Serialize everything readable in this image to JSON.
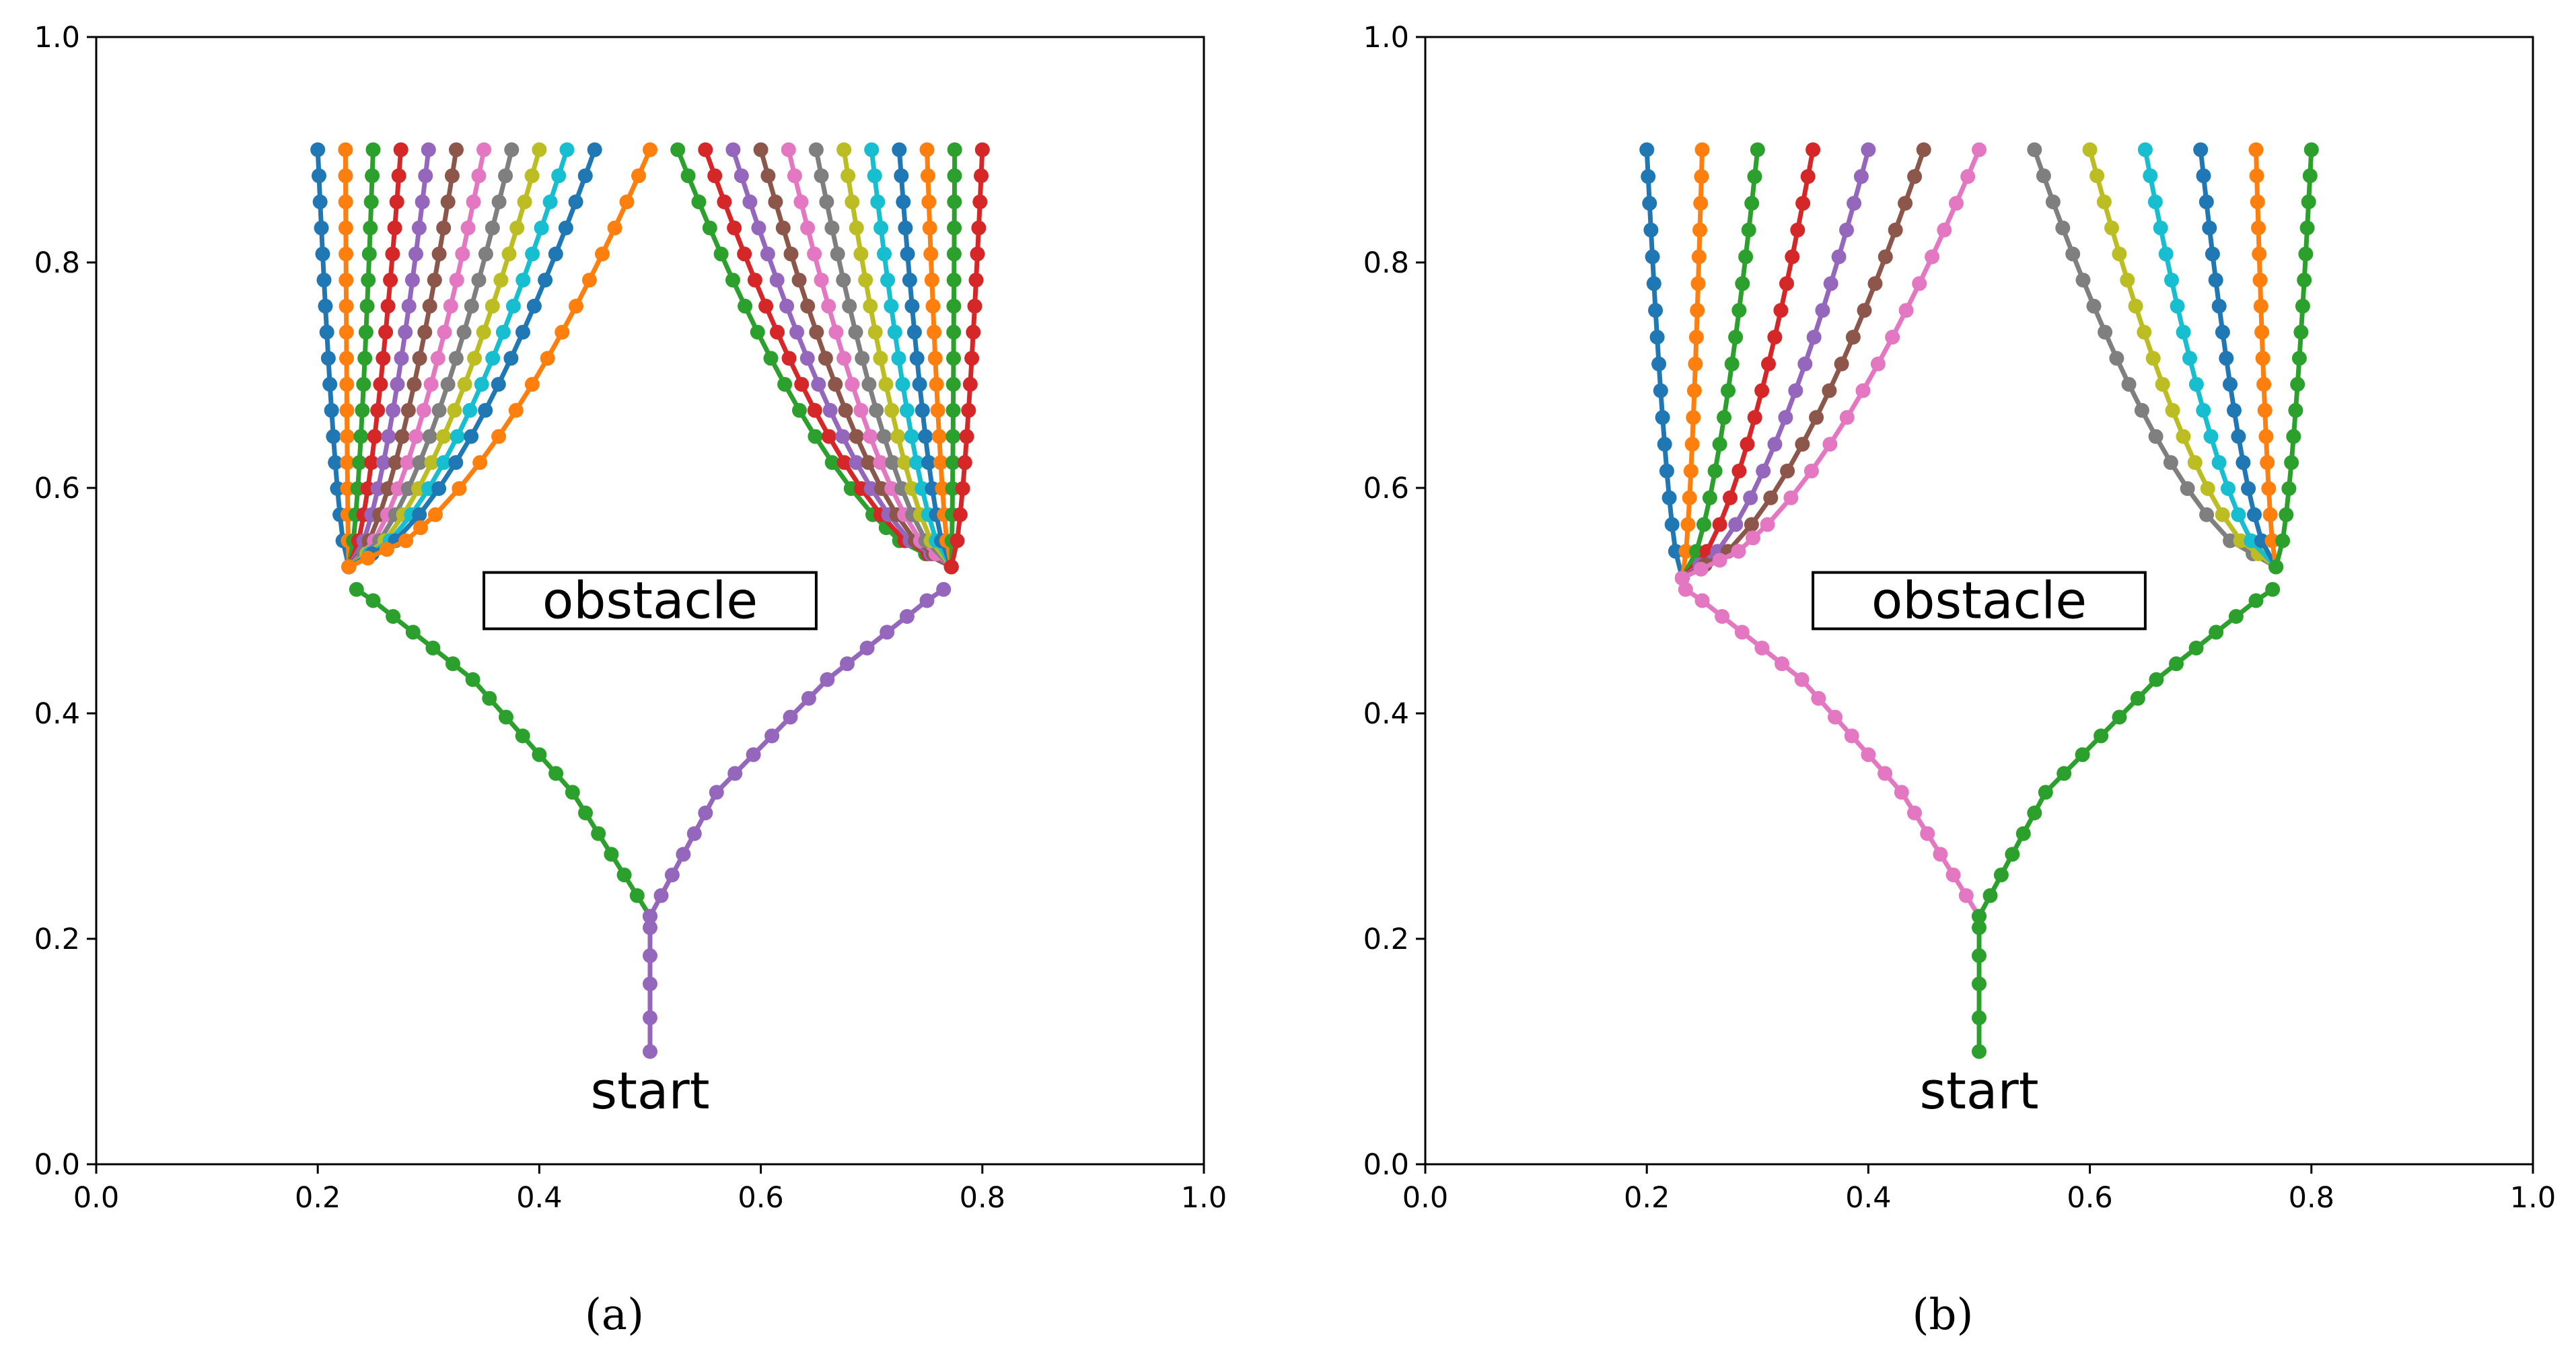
{
  "figure": {
    "captions": [
      "(a)",
      "(b)"
    ]
  },
  "colors": {
    "palette": [
      "#1f77b4",
      "#ff7f0e",
      "#2ca02c",
      "#d62728",
      "#9467bd",
      "#8c564b",
      "#e377c2",
      "#7f7f7f",
      "#bcbd22",
      "#17becf"
    ],
    "axis": "#000000"
  },
  "chart_data": [
    {
      "type": "line",
      "caption": "(a)",
      "xlim": [
        0,
        1
      ],
      "ylim": [
        0,
        1
      ],
      "xticks": [
        "0.0",
        "0.2",
        "0.4",
        "0.6",
        "0.8",
        "1.0"
      ],
      "yticks": [
        "0.0",
        "0.2",
        "0.4",
        "0.6",
        "0.8",
        "1.0"
      ],
      "grid": false,
      "markers": "circle",
      "annotations": {
        "obstacle": {
          "label": "obstacle",
          "x0": 0.35,
          "x1": 0.65,
          "y0": 0.475,
          "y1": 0.525
        },
        "start": {
          "label": "start",
          "x": 0.5,
          "y": 0.065
        }
      },
      "trunk": [
        [
          0.5,
          0.1
        ],
        [
          0.5,
          0.13
        ],
        [
          0.5,
          0.16
        ],
        [
          0.5,
          0.185
        ],
        [
          0.5,
          0.21
        ]
      ],
      "branches": [
        {
          "color_index": 2,
          "points": [
            [
              0.5,
              0.22
            ],
            [
              0.43,
              0.33
            ],
            [
              0.34,
              0.43
            ],
            [
              0.25,
              0.5
            ],
            [
              0.235,
              0.51
            ]
          ]
        },
        {
          "color_index": 4,
          "points": [
            [
              0.5,
              0.22
            ],
            [
              0.56,
              0.33
            ],
            [
              0.66,
              0.43
            ],
            [
              0.75,
              0.5
            ],
            [
              0.765,
              0.51
            ]
          ]
        }
      ],
      "fans": [
        {
          "side": "left",
          "origin": [
            0.228,
            0.53
          ],
          "targets": [
            [
              0.2,
              0.9
            ],
            [
              0.225,
              0.9
            ],
            [
              0.25,
              0.9
            ],
            [
              0.275,
              0.9
            ],
            [
              0.3,
              0.9
            ],
            [
              0.325,
              0.9
            ],
            [
              0.35,
              0.9
            ],
            [
              0.375,
              0.9
            ],
            [
              0.4,
              0.9
            ],
            [
              0.425,
              0.9
            ],
            [
              0.45,
              0.9
            ],
            [
              0.5,
              0.9
            ]
          ]
        },
        {
          "side": "right",
          "origin": [
            0.772,
            0.53
          ],
          "targets": [
            [
              0.525,
              0.9
            ],
            [
              0.55,
              0.9
            ],
            [
              0.575,
              0.9
            ],
            [
              0.6,
              0.9
            ],
            [
              0.625,
              0.9
            ],
            [
              0.65,
              0.9
            ],
            [
              0.675,
              0.9
            ],
            [
              0.7,
              0.9
            ],
            [
              0.725,
              0.9
            ],
            [
              0.75,
              0.9
            ],
            [
              0.775,
              0.9
            ],
            [
              0.8,
              0.9
            ]
          ]
        }
      ]
    },
    {
      "type": "line",
      "caption": "(b)",
      "xlim": [
        0,
        1
      ],
      "ylim": [
        0,
        1
      ],
      "xticks": [
        "0.0",
        "0.2",
        "0.4",
        "0.6",
        "0.8",
        "1.0"
      ],
      "yticks": [
        "0.0",
        "0.2",
        "0.4",
        "0.6",
        "0.8",
        "1.0"
      ],
      "grid": false,
      "markers": "circle",
      "annotations": {
        "obstacle": {
          "label": "obstacle",
          "x0": 0.35,
          "x1": 0.65,
          "y0": 0.475,
          "y1": 0.525
        },
        "start": {
          "label": "start",
          "x": 0.5,
          "y": 0.065
        }
      },
      "trunk": [
        [
          0.5,
          0.1
        ],
        [
          0.5,
          0.13
        ],
        [
          0.5,
          0.16
        ],
        [
          0.5,
          0.185
        ],
        [
          0.5,
          0.21
        ]
      ],
      "branches": [
        {
          "color_index": 6,
          "points": [
            [
              0.5,
              0.22
            ],
            [
              0.43,
              0.33
            ],
            [
              0.34,
              0.43
            ],
            [
              0.25,
              0.5
            ],
            [
              0.235,
              0.51
            ]
          ]
        },
        {
          "color_index": 2,
          "points": [
            [
              0.5,
              0.22
            ],
            [
              0.56,
              0.33
            ],
            [
              0.66,
              0.43
            ],
            [
              0.75,
              0.5
            ],
            [
              0.765,
              0.51
            ]
          ]
        }
      ],
      "fans": [
        {
          "side": "left",
          "origin": [
            0.232,
            0.52
          ],
          "targets": [
            [
              0.2,
              0.9
            ],
            [
              0.25,
              0.9
            ],
            [
              0.3,
              0.9
            ],
            [
              0.35,
              0.9
            ],
            [
              0.4,
              0.9
            ],
            [
              0.45,
              0.9
            ],
            [
              0.5,
              0.9
            ]
          ]
        },
        {
          "side": "right",
          "origin": [
            0.768,
            0.53
          ],
          "targets": [
            [
              0.55,
              0.9
            ],
            [
              0.6,
              0.9
            ],
            [
              0.65,
              0.9
            ],
            [
              0.7,
              0.9
            ],
            [
              0.75,
              0.9
            ],
            [
              0.8,
              0.9
            ]
          ]
        }
      ]
    }
  ]
}
